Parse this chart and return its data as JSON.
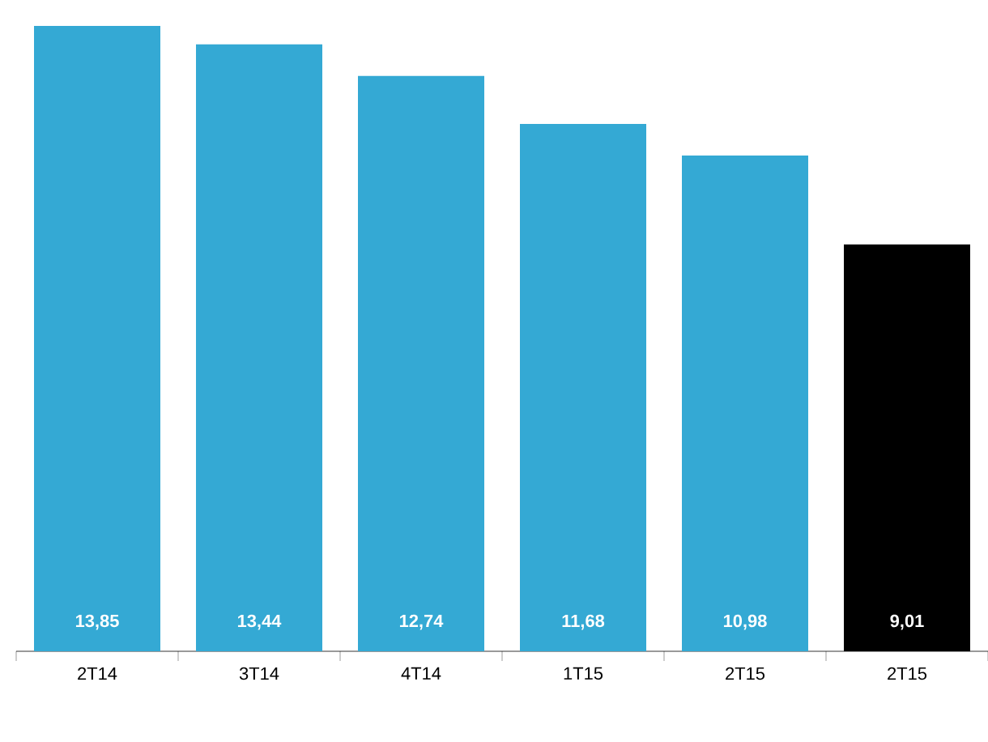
{
  "chart_data": {
    "type": "bar",
    "categories": [
      "2T14",
      "3T14",
      "4T14",
      "1T15",
      "2T15",
      "2T15"
    ],
    "values": [
      13.85,
      13.44,
      12.74,
      11.68,
      10.98,
      9.01
    ],
    "value_labels": [
      "13,85",
      "13,44",
      "12,74",
      "11,68",
      "10,98",
      "9,01"
    ],
    "colors": [
      "#34a9d4",
      "#34a9d4",
      "#34a9d4",
      "#34a9d4",
      "#34a9d4",
      "#000000"
    ]
  }
}
